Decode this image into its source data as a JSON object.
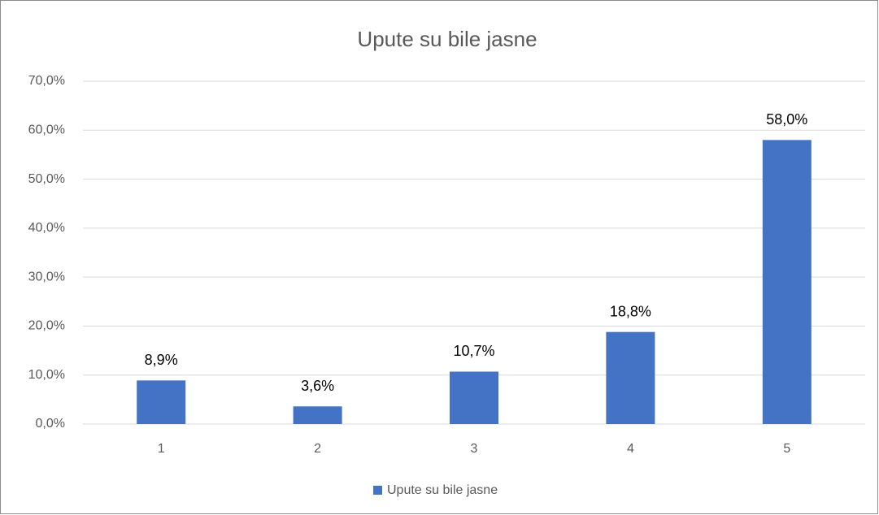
{
  "chart_data": {
    "type": "bar",
    "title": "Upute su bile jasne",
    "categories": [
      "1",
      "2",
      "3",
      "4",
      "5"
    ],
    "series": [
      {
        "name": "Upute su bile jasne",
        "color": "#4472c4",
        "values": [
          8.9,
          3.6,
          10.7,
          18.8,
          58.0
        ],
        "value_labels": [
          "8,9%",
          "3,6%",
          "10,7%",
          "18,8%",
          "58,0%"
        ]
      }
    ],
    "ylim": [
      0,
      70
    ],
    "yticks": [
      {
        "value": 0,
        "label": "0,0%"
      },
      {
        "value": 10,
        "label": "10,0%"
      },
      {
        "value": 20,
        "label": "20,0%"
      },
      {
        "value": 30,
        "label": "30,0%"
      },
      {
        "value": 40,
        "label": "40,0%"
      },
      {
        "value": 50,
        "label": "50,0%"
      },
      {
        "value": 60,
        "label": "60,0%"
      },
      {
        "value": 70,
        "label": "70,0%"
      }
    ],
    "grid": true,
    "legend": "bottom"
  }
}
